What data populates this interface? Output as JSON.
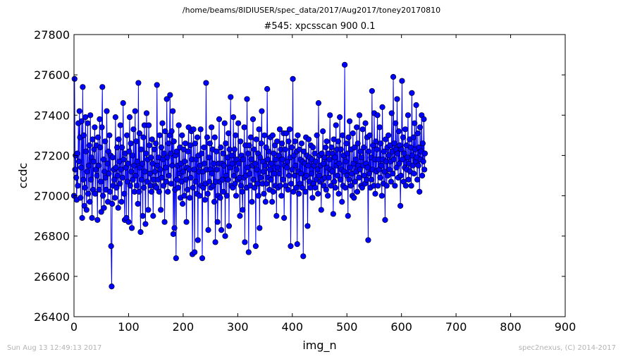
{
  "suptitle": "/home/beams/8IDIUSER/spec_data/2017/Aug2017/toney20170810",
  "footer": {
    "left": "Sun Aug 13 12:49:13 2017",
    "right": "spec2nexus, (C) 2014-2017"
  },
  "colors": {
    "series": "#0000ff",
    "marker_edge": "#000000",
    "footer_text": "#b3b3b3"
  },
  "chart_data": {
    "type": "line",
    "title": "#545: xpcsscan 900 0.1",
    "xlabel": "img_n",
    "ylabel": "ccdc",
    "xlim": [
      0,
      900
    ],
    "ylim": [
      26400,
      27800
    ],
    "xticks": [
      0,
      100,
      200,
      300,
      400,
      500,
      600,
      700,
      800,
      900
    ],
    "yticks": [
      26400,
      26600,
      26800,
      27000,
      27200,
      27400,
      27600,
      27800
    ],
    "grid": false,
    "legend": "none",
    "series": [
      {
        "x_start": 0,
        "x_step": 1,
        "values": [
          27000,
          27580,
          27130,
          27200,
          27090,
          26980,
          27210,
          27050,
          27360,
          27170,
          27420,
          27290,
          26990,
          27140,
          27370,
          26890,
          27540,
          27080,
          27300,
          26950,
          27040,
          27390,
          27220,
          26930,
          27120,
          27360,
          27010,
          27150,
          27250,
          26970,
          27400,
          27080,
          27190,
          26890,
          27280,
          27030,
          27170,
          27230,
          27340,
          27010,
          27130,
          27250,
          27100,
          26880,
          27290,
          27150,
          27030,
          27380,
          27240,
          27070,
          26920,
          27340,
          27540,
          27000,
          27180,
          26940,
          27120,
          27270,
          27090,
          27030,
          27420,
          27160,
          26970,
          27220,
          27110,
          27300,
          27020,
          27200,
          26750,
          26550,
          26960,
          27190,
          27050,
          27130,
          27080,
          26990,
          27390,
          27140,
          27040,
          27240,
          27100,
          26940,
          27280,
          27170,
          27060,
          27350,
          27130,
          26970,
          27240,
          27090,
          27460,
          27180,
          27010,
          26880,
          27210,
          27140,
          26890,
          27300,
          27070,
          27160,
          26870,
          27220,
          27390,
          27050,
          27260,
          27120,
          26840,
          27200,
          27080,
          27330,
          27150,
          27020,
          27420,
          27100,
          27270,
          27050,
          27170,
          26960,
          27560,
          27020,
          27310,
          27140,
          26820,
          27230,
          27080,
          27160,
          26900,
          27290,
          27040,
          27350,
          27120,
          26860,
          27210,
          27410,
          27070,
          27180,
          26930,
          27350,
          27250,
          27110,
          27050,
          27190,
          27020,
          27280,
          27160,
          26900,
          27080,
          27230,
          27120,
          27050,
          27260,
          27040,
          27550,
          27150,
          27080,
          27190,
          27020,
          27300,
          27130,
          26930,
          27240,
          27090,
          27360,
          27180,
          27050,
          27210,
          26870,
          27320,
          27140,
          27070,
          27480,
          27190,
          27020,
          27260,
          27100,
          27300,
          27500,
          27210,
          27060,
          27320,
          27150,
          27420,
          26810,
          27270,
          26840,
          27030,
          27200,
          26690,
          27220,
          27080,
          27150,
          27040,
          27350,
          27110,
          27240,
          26990,
          27160,
          27070,
          27300,
          26960,
          27120,
          27230,
          27000,
          27170,
          27260,
          27080,
          26870,
          27140,
          27030,
          27220,
          27340,
          27130,
          26990,
          27250,
          27090,
          27320,
          27180,
          26710,
          27040,
          27330,
          27130,
          26720,
          27260,
          27070,
          27180,
          27010,
          27290,
          26780,
          27200,
          27120,
          27000,
          27150,
          27330,
          27050,
          27210,
          26690,
          27120,
          27040,
          27240,
          27160,
          26980,
          27060,
          27560,
          27130,
          27290,
          27010,
          26830,
          27190,
          27070,
          27260,
          27130,
          27040,
          27340,
          27110,
          27230,
          27050,
          27160,
          26970,
          27290,
          26770,
          27070,
          27220,
          27130,
          26870,
          27000,
          27160,
          27380,
          27070,
          26990,
          27240,
          26830,
          27160,
          27080,
          27210,
          27020,
          27150,
          27360,
          26800,
          27260,
          27100,
          27000,
          27190,
          27080,
          27310,
          26850,
          27230,
          27140,
          27490,
          27050,
          27200,
          27160,
          27040,
          27390,
          27100,
          27230,
          27060,
          27300,
          27000,
          27130,
          27180,
          27080,
          27360,
          27160,
          27090,
          26900,
          27270,
          27050,
          27200,
          27020,
          26930,
          27180,
          27090,
          27340,
          26770,
          27250,
          27100,
          27040,
          27480,
          27140,
          27210,
          26720,
          27250,
          27110,
          27050,
          27290,
          27180,
          26970,
          27150,
          27380,
          27080,
          27230,
          27040,
          27160,
          26750,
          27280,
          27130,
          27060,
          27210,
          27000,
          27330,
          26840,
          27190,
          27090,
          27260,
          27420,
          27060,
          27170,
          27120,
          27010,
          27300,
          27150,
          26970,
          27240,
          27060,
          27530,
          27180,
          27090,
          27220,
          27030,
          27130,
          27290,
          27080,
          27160,
          26970,
          27300,
          27020,
          27210,
          27110,
          27250,
          27050,
          27180,
          26900,
          27270,
          27140,
          27040,
          27200,
          27110,
          27330,
          27050,
          27230,
          27000,
          27260,
          27180,
          27080,
          27310,
          26890,
          27150,
          27230,
          27050,
          27310,
          27140,
          27170,
          27030,
          27270,
          27100,
          27330,
          27190,
          26750,
          27060,
          27240,
          27130,
          27580,
          27020,
          27200,
          27100,
          27270,
          27150,
          27040,
          27220,
          26760,
          27300,
          27120,
          27010,
          27230,
          27060,
          27180,
          27110,
          27260,
          27040,
          27170,
          26700,
          27220,
          27090,
          27160,
          27020,
          27290,
          27100,
          27200,
          26850,
          27150,
          27280,
          27070,
          27190,
          27040,
          27250,
          27110,
          27180,
          26990,
          27240,
          27060,
          27150,
          27210,
          27040,
          27170,
          27080,
          27300,
          27130,
          27010,
          27460,
          27100,
          27200,
          27070,
          27150,
          26930,
          27210,
          27080,
          27320,
          27160,
          27050,
          27190,
          27090,
          27240,
          27030,
          27270,
          27140,
          27000,
          27210,
          27090,
          27180,
          27400,
          27130,
          27050,
          27240,
          27120,
          27210,
          26910,
          27280,
          27070,
          27190,
          27040,
          27350,
          27150,
          27230,
          27100,
          27270,
          27010,
          27160,
          27390,
          27080,
          27230,
          27130,
          26970,
          27300,
          27050,
          27200,
          27120,
          27650,
          27040,
          27170,
          27260,
          27100,
          27210,
          26900,
          27290,
          27080,
          27370,
          27140,
          27050,
          27230,
          27110,
          27000,
          27310,
          27160,
          26990,
          27240,
          27070,
          27180,
          27120,
          27340,
          27020,
          27260,
          27150,
          27090,
          27400,
          27130,
          27220,
          27050,
          27190,
          27040,
          27330,
          27150,
          27240,
          27100,
          27060,
          27360,
          27160,
          27080,
          27290,
          27140,
          26780,
          27220,
          27110,
          27300,
          27040,
          27190,
          27080,
          27520,
          27130,
          27250,
          27050,
          27410,
          27180,
          27010,
          27270,
          27120,
          27230,
          27400,
          27050,
          27180,
          27130,
          27340,
          27090,
          27260,
          27150,
          27000,
          27440,
          27180,
          27060,
          27220,
          27120,
          26880,
          27280,
          27170,
          27050,
          27240,
          27100,
          27300,
          27200,
          27130,
          27250,
          27170,
          27070,
          27410,
          27220,
          27110,
          27590,
          27180,
          27260,
          27050,
          27360,
          27230,
          27140,
          27480,
          27210,
          27090,
          27320,
          27160,
          27250,
          26950,
          27100,
          27230,
          27570,
          27180,
          27290,
          27070,
          27210,
          27140,
          27330,
          27050,
          27250,
          27130,
          27190,
          27400,
          27080,
          27160,
          27280,
          27120,
          27240,
          27050,
          27510,
          27200,
          27150,
          27290,
          27110,
          27360,
          27230,
          27170,
          27450,
          27190,
          27080,
          27310,
          27150,
          27240,
          27020,
          27340,
          27180,
          27220,
          27400,
          27100,
          27260,
          27170,
          27380,
          27130,
          27210
        ]
      }
    ]
  }
}
